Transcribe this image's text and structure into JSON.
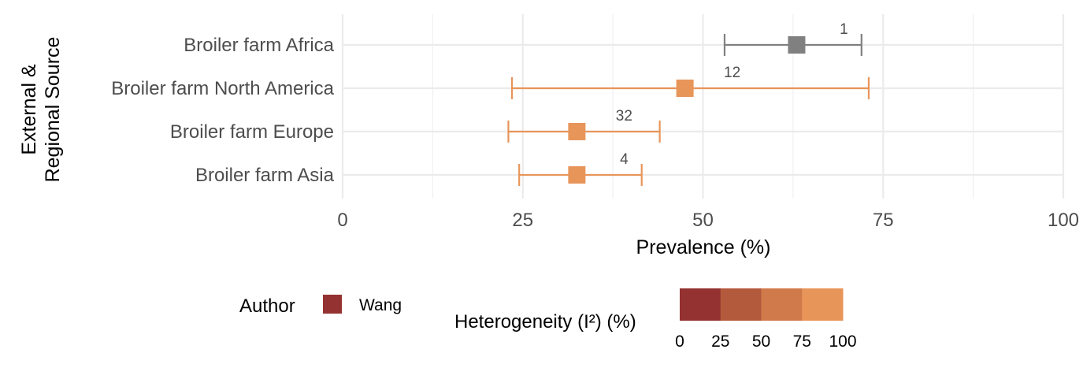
{
  "chart_data": {
    "type": "forest",
    "xlabel": "Prevalence (%)",
    "ylabel_lines": [
      "External &",
      "Regional Source"
    ],
    "xlim": [
      0,
      100
    ],
    "xticks": [
      0,
      25,
      50,
      75,
      100
    ],
    "grid": true,
    "rows": [
      {
        "label": "Broiler farm Africa",
        "estimate": 63,
        "lower": 53,
        "upper": 72,
        "n": "1",
        "color": "#808080"
      },
      {
        "label": "Broiler farm North America",
        "estimate": 47.5,
        "lower": 23.5,
        "upper": 73,
        "n": "12",
        "color": "#E8955A"
      },
      {
        "label": "Broiler farm Europe",
        "estimate": 32.5,
        "lower": 23,
        "upper": 44,
        "n": "32",
        "color": "#E8955A"
      },
      {
        "label": "Broiler farm Asia",
        "estimate": 32.5,
        "lower": 24.5,
        "upper": 41.5,
        "n": "4",
        "color": "#E8955A"
      }
    ]
  },
  "legend": {
    "author_title": "Author",
    "author_items": [
      {
        "label": "Wang",
        "color": "#943232"
      }
    ],
    "heterogeneity_title": "Heterogeneity (I²) (%)",
    "heterogeneity_colors": [
      "#943232",
      "#B45A3C",
      "#D07A4B",
      "#E8955A"
    ],
    "heterogeneity_ticks": [
      "0",
      "25",
      "50",
      "75",
      "100"
    ]
  }
}
